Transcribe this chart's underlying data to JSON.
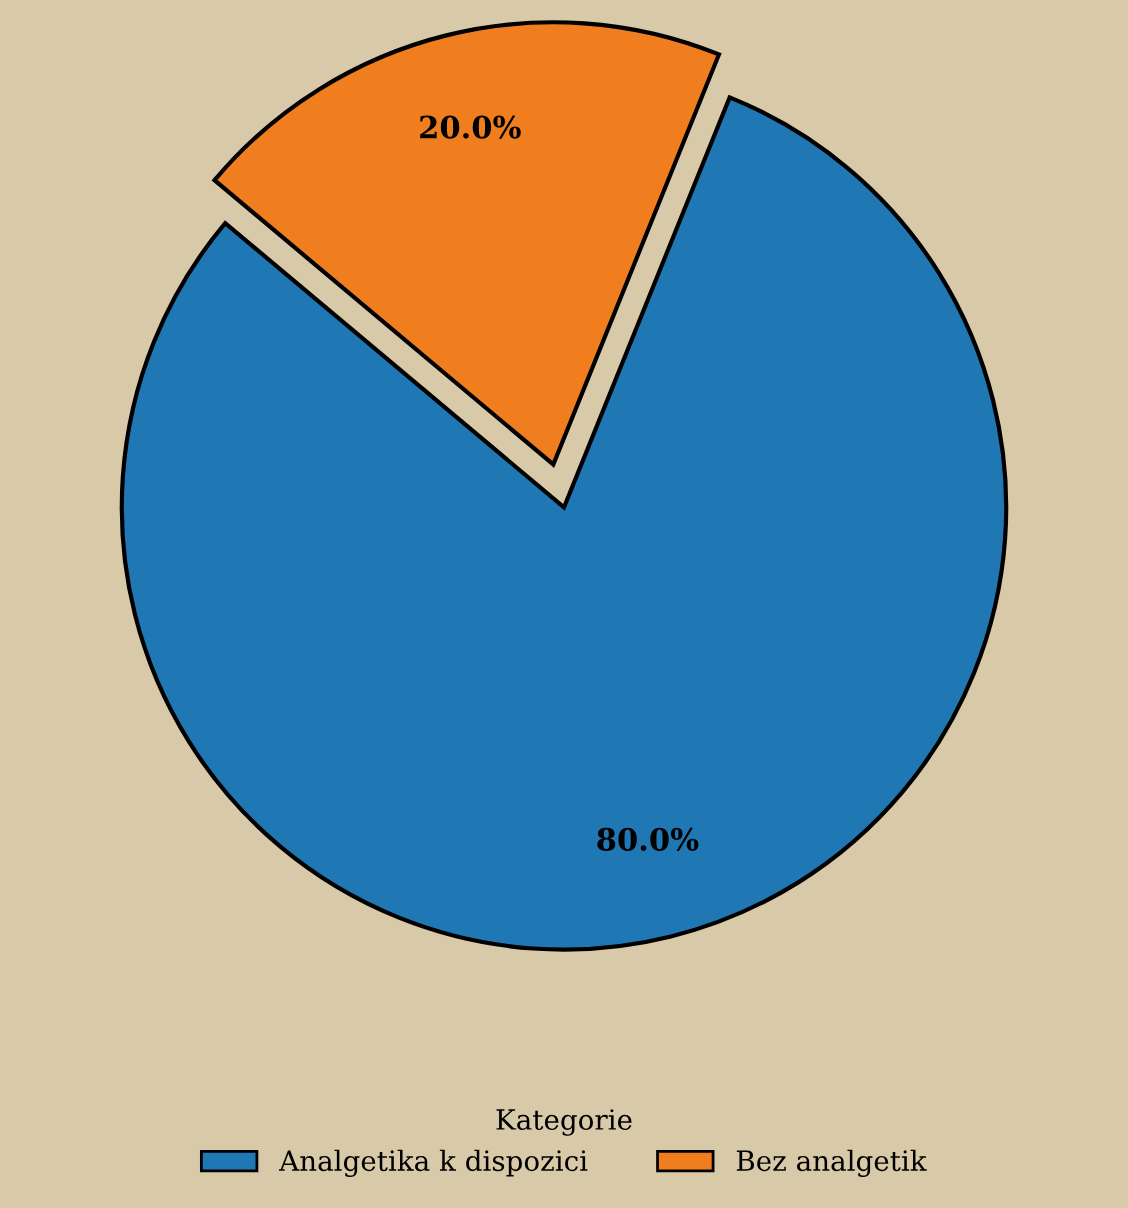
{
  "chart_data": {
    "type": "pie",
    "categories": [
      "Analgetika k dispozici",
      "Bez analgetik"
    ],
    "values": [
      80,
      20
    ],
    "colors": [
      "#1f77b4",
      "#f07e1e"
    ],
    "value_labels": [
      "80.0%",
      "20.0%"
    ],
    "legend": "bottom",
    "legend_title": "Kategorie"
  }
}
